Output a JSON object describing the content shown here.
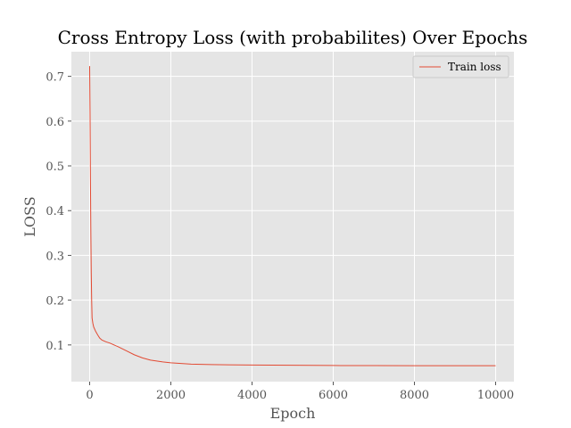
{
  "chart_data": {
    "type": "line",
    "title": "Cross Entropy Loss (with probabilites) Over Epochs",
    "xlabel": "Epoch",
    "ylabel": "LOSS",
    "xlim": [
      -450,
      10450
    ],
    "ylim": [
      0.018,
      0.755
    ],
    "xticks": [
      0,
      2000,
      4000,
      6000,
      8000,
      10000
    ],
    "xtick_labels": [
      "0",
      "2000",
      "4000",
      "6000",
      "8000",
      "10000"
    ],
    "yticks": [
      0.1,
      0.2,
      0.3,
      0.4,
      0.5,
      0.6,
      0.7
    ],
    "ytick_labels": [
      "0.1",
      "0.2",
      "0.3",
      "0.4",
      "0.5",
      "0.6",
      "0.7"
    ],
    "grid": true,
    "legend_position": "top-right",
    "series": [
      {
        "name": "Train loss",
        "color": "#E24A33",
        "x": [
          0,
          10,
          20,
          30,
          40,
          50,
          60,
          80,
          100,
          150,
          200,
          250,
          300,
          400,
          500,
          700,
          900,
          1100,
          1300,
          1500,
          1800,
          2000,
          2500,
          3000,
          4000,
          5000,
          6000,
          7000,
          8000,
          9000,
          10000
        ],
        "y": [
          0.723,
          0.62,
          0.47,
          0.35,
          0.26,
          0.2,
          0.16,
          0.148,
          0.14,
          0.13,
          0.122,
          0.115,
          0.111,
          0.107,
          0.104,
          0.096,
          0.087,
          0.078,
          0.071,
          0.066,
          0.062,
          0.06,
          0.057,
          0.056,
          0.055,
          0.0545,
          0.054,
          0.0538,
          0.0536,
          0.0535,
          0.0535
        ]
      }
    ]
  }
}
